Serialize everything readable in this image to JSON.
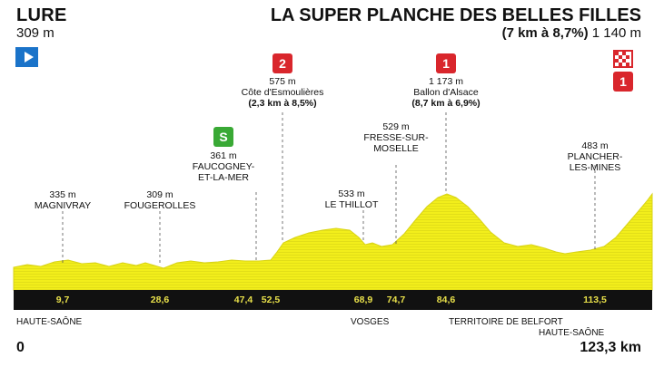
{
  "start": {
    "name": "LURE",
    "altitude": "309 m"
  },
  "finish": {
    "name": "LA SUPER PLANCHE DES BELLES FILLES",
    "climb": "(7 km à 8,7%)",
    "altitude": "1 140 m"
  },
  "waypoints": [
    {
      "alt": "335 m",
      "name": "MAGNIVRAY"
    },
    {
      "alt": "309 m",
      "name": "FOUGEROLLES"
    },
    {
      "alt": "361 m",
      "name": "FAUCOGNEY-",
      "name2": "ET-LA-MER"
    },
    {
      "alt": "575 m",
      "name": "Côte d'Esmoulières",
      "detail": "(2,3 km à 8,5%)"
    },
    {
      "alt": "533 m",
      "name": "LE THILLOT"
    },
    {
      "alt": "529 m",
      "name": "FRESSE-SUR-",
      "name2": "MOSELLE"
    },
    {
      "alt": "1 173 m",
      "name": "Ballon d'Alsace",
      "detail": "(8,7 km à 6,9%)"
    },
    {
      "alt": "483 m",
      "name": "PLANCHER-",
      "name2": "LES-MINES"
    }
  ],
  "km_marks": [
    "9,7",
    "28,6",
    "47,4",
    "52,5",
    "68,9",
    "74,7",
    "84,6",
    "113,5"
  ],
  "regions": [
    "HAUTE-SAÔNE",
    "VOSGES",
    "TERRITOIRE DE BELFORT",
    "HAUTE-SAÔNE"
  ],
  "distance_start": "0",
  "distance_end": "123,3 km",
  "badges": {
    "cat2": "2",
    "sprint": "S",
    "cat1a": "1",
    "cat1b": "1"
  },
  "colors": {
    "profile": "#f2ee1b",
    "band": "#111111",
    "km_text": "#e8e04a",
    "climb_badge": "#d9262c",
    "sprint_badge": "#39a935",
    "start_flag": "#1a73c9"
  }
}
